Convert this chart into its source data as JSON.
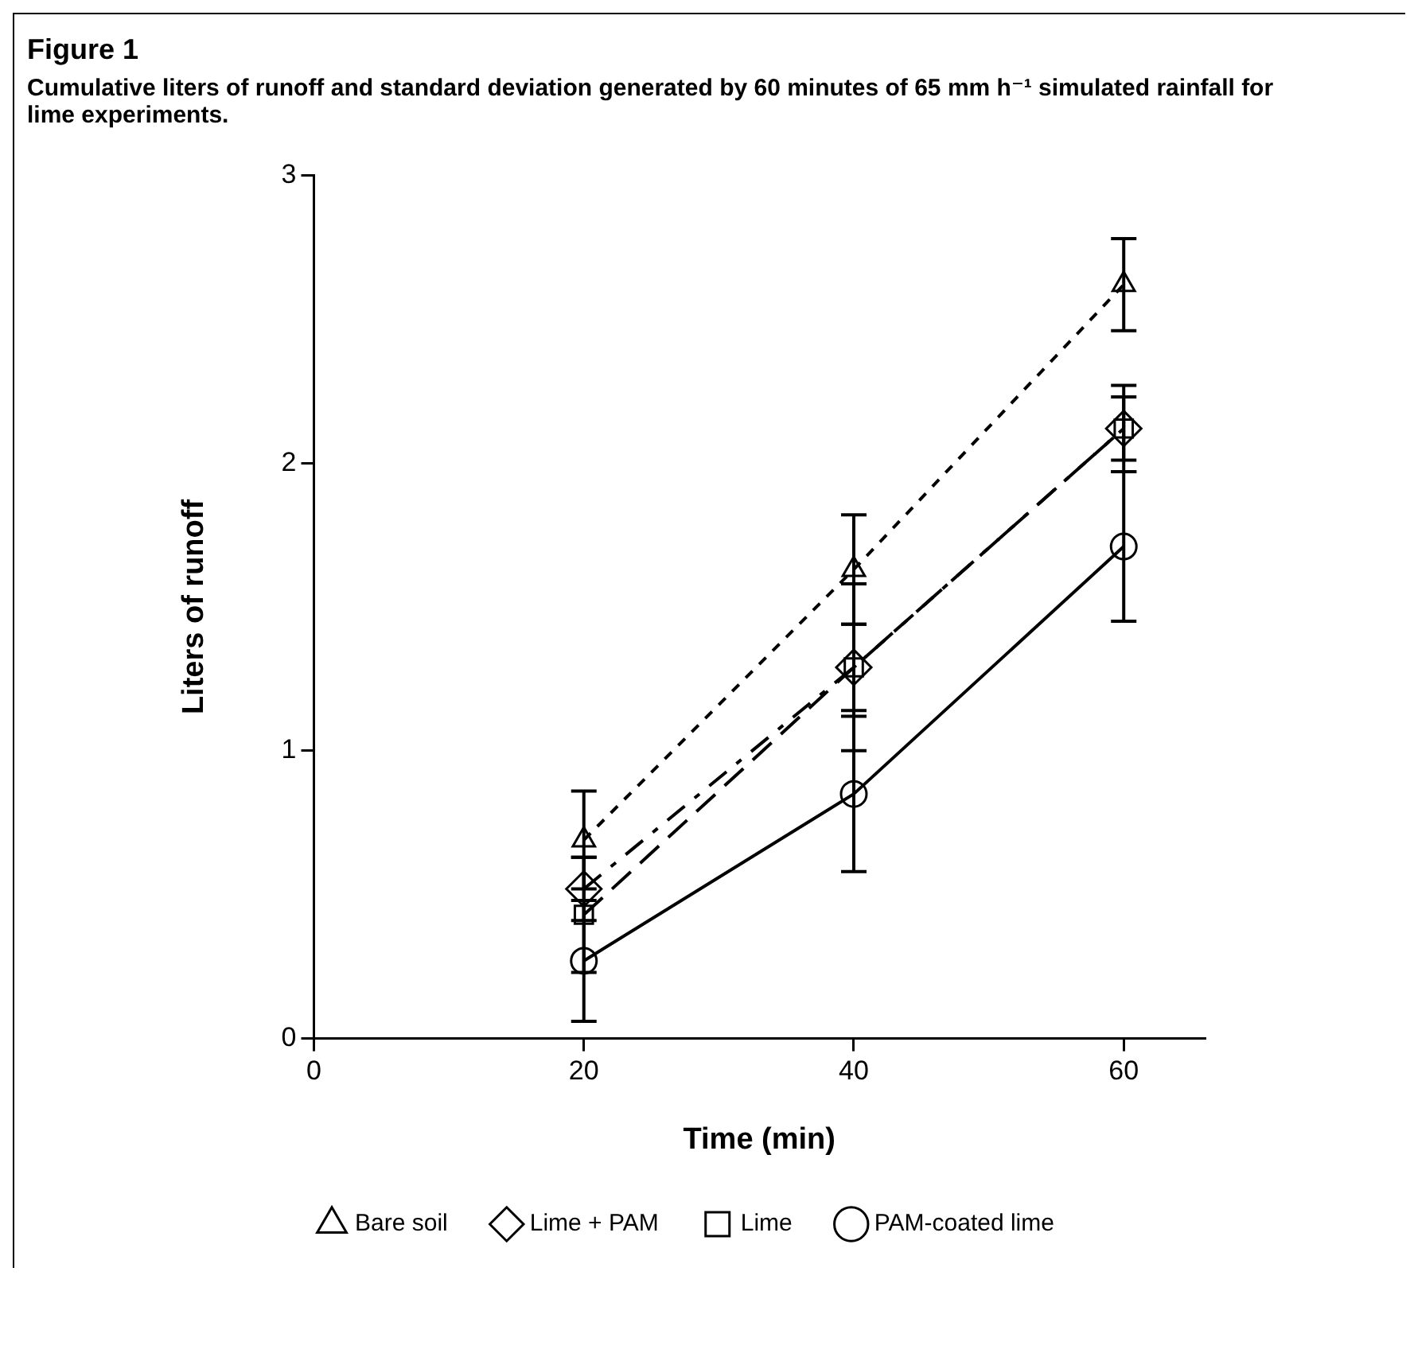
{
  "chart_data": {
    "type": "line",
    "title": "Figure 1",
    "subtitle": "Cumulative liters of runoff and standard deviation generated by 60 minutes of 65 mm h⁻¹ simulated rainfall for lime experiments.",
    "xlabel": "Time (min)",
    "ylabel": "Liters of runoff",
    "x": [
      20,
      40,
      60
    ],
    "series": [
      {
        "name": "Bare soil",
        "color": "#000000",
        "marker": "triangle",
        "line_style": "dashed",
        "values": [
          0.69,
          1.63,
          2.62
        ],
        "errors": [
          0.17,
          0.19,
          0.16
        ]
      },
      {
        "name": "Lime + PAM",
        "color": "#000000",
        "marker": "diamond",
        "line_style": "dashed",
        "values": [
          0.52,
          1.29,
          2.12
        ],
        "errors": [
          0.11,
          0.29,
          0.15
        ]
      },
      {
        "name": "Lime",
        "color": "#000000",
        "marker": "square",
        "line_style": "dashed",
        "values": [
          0.43,
          1.29,
          2.12
        ],
        "errors": [
          0.2,
          0.15,
          0.11
        ]
      },
      {
        "name": "PAM-coated lime",
        "color": "#000000",
        "marker": "circle",
        "line_style": "solid",
        "values": [
          0.27,
          0.85,
          1.71
        ],
        "errors": [
          0.21,
          0.27,
          0.26
        ]
      }
    ],
    "xlim": [
      0,
      66
    ],
    "xticks": [
      0,
      20,
      40,
      60
    ],
    "ylim": [
      0,
      3
    ],
    "yticks": [
      0,
      1,
      2,
      3
    ],
    "grid": false,
    "legend": "bottom"
  }
}
